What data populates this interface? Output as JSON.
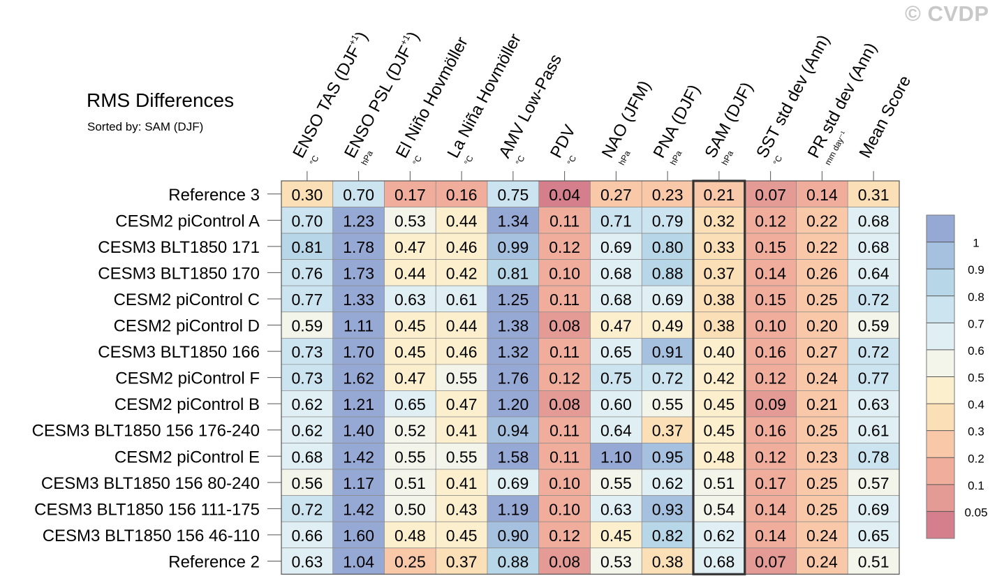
{
  "header": {
    "title": "RMS Differences",
    "subtitle": "Sorted by: SAM (DJF)",
    "watermark": "© CVDP"
  },
  "chart_data": {
    "type": "heatmap",
    "title": "RMS Differences",
    "subtitle": "Sorted by: SAM (DJF)",
    "highlighted_column": "SAM (DJF)",
    "columns": [
      {
        "label": "ENSO TAS (DJF",
        "sup": "+1",
        "close": ")",
        "unit": "°C"
      },
      {
        "label": "ENSO PSL (DJF",
        "sup": "+1",
        "close": ")",
        "unit": "hPa"
      },
      {
        "label": "El Niño Hovmöller",
        "sup": "",
        "close": "",
        "unit": "°C"
      },
      {
        "label": "La Niña Hovmöller",
        "sup": "",
        "close": "",
        "unit": "°C"
      },
      {
        "label": "AMV Low-Pass",
        "sup": "",
        "close": "",
        "unit": "°C"
      },
      {
        "label": "PDV",
        "sup": "",
        "close": "",
        "unit": "°C"
      },
      {
        "label": "NAO (JFM)",
        "sup": "",
        "close": "",
        "unit": "hPa"
      },
      {
        "label": "PNA (DJF)",
        "sup": "",
        "close": "",
        "unit": "hPa"
      },
      {
        "label": "SAM (DJF)",
        "sup": "",
        "close": "",
        "unit": "hPa"
      },
      {
        "label": "SST std dev (Ann)",
        "sup": "",
        "close": "",
        "unit": "°C"
      },
      {
        "label": "PR std dev (Ann)",
        "sup": "",
        "close": "",
        "unit": "mm day⁻¹"
      },
      {
        "label": "Mean Score",
        "sup": "",
        "close": "",
        "unit": ""
      }
    ],
    "rows": [
      "Reference 3",
      "CESM2 piControl A",
      "CESM3 BLT1850 171",
      "CESM3 BLT1850 170",
      "CESM2 piControl C",
      "CESM2 piControl D",
      "CESM3 BLT1850 166",
      "CESM2 piControl F",
      "CESM2 piControl B",
      "CESM3 BLT1850 156 176-240",
      "CESM2 piControl E",
      "CESM3 BLT1850 156 80-240",
      "CESM3 BLT1850 156 111-175",
      "CESM3 BLT1850 156 46-110",
      "Reference 2"
    ],
    "values": [
      [
        "0.30",
        "0.70",
        "0.17",
        "0.16",
        "0.75",
        "0.04",
        "0.27",
        "0.23",
        "0.21",
        "0.07",
        "0.14",
        "0.31"
      ],
      [
        "0.70",
        "1.23",
        "0.53",
        "0.44",
        "1.34",
        "0.11",
        "0.71",
        "0.79",
        "0.32",
        "0.12",
        "0.22",
        "0.68"
      ],
      [
        "0.81",
        "1.78",
        "0.47",
        "0.46",
        "0.99",
        "0.12",
        "0.69",
        "0.80",
        "0.33",
        "0.15",
        "0.22",
        "0.68"
      ],
      [
        "0.76",
        "1.73",
        "0.44",
        "0.42",
        "0.81",
        "0.10",
        "0.68",
        "0.88",
        "0.37",
        "0.14",
        "0.26",
        "0.64"
      ],
      [
        "0.77",
        "1.33",
        "0.63",
        "0.61",
        "1.25",
        "0.11",
        "0.68",
        "0.69",
        "0.38",
        "0.15",
        "0.25",
        "0.72"
      ],
      [
        "0.59",
        "1.11",
        "0.45",
        "0.44",
        "1.38",
        "0.08",
        "0.47",
        "0.49",
        "0.38",
        "0.10",
        "0.20",
        "0.59"
      ],
      [
        "0.73",
        "1.70",
        "0.45",
        "0.46",
        "1.32",
        "0.11",
        "0.65",
        "0.91",
        "0.40",
        "0.16",
        "0.27",
        "0.72"
      ],
      [
        "0.73",
        "1.62",
        "0.47",
        "0.55",
        "1.76",
        "0.12",
        "0.75",
        "0.72",
        "0.42",
        "0.12",
        "0.24",
        "0.77"
      ],
      [
        "0.62",
        "1.21",
        "0.65",
        "0.47",
        "1.20",
        "0.08",
        "0.60",
        "0.55",
        "0.45",
        "0.09",
        "0.21",
        "0.63"
      ],
      [
        "0.62",
        "1.40",
        "0.52",
        "0.41",
        "0.94",
        "0.11",
        "0.64",
        "0.37",
        "0.45",
        "0.16",
        "0.25",
        "0.61"
      ],
      [
        "0.68",
        "1.42",
        "0.55",
        "0.55",
        "1.58",
        "0.11",
        "1.10",
        "0.95",
        "0.48",
        "0.12",
        "0.23",
        "0.78"
      ],
      [
        "0.56",
        "1.17",
        "0.51",
        "0.41",
        "0.69",
        "0.10",
        "0.55",
        "0.62",
        "0.51",
        "0.17",
        "0.25",
        "0.57"
      ],
      [
        "0.72",
        "1.42",
        "0.50",
        "0.43",
        "1.19",
        "0.10",
        "0.63",
        "0.93",
        "0.54",
        "0.14",
        "0.25",
        "0.69"
      ],
      [
        "0.66",
        "1.60",
        "0.48",
        "0.45",
        "0.90",
        "0.12",
        "0.45",
        "0.82",
        "0.62",
        "0.14",
        "0.24",
        "0.65"
      ],
      [
        "0.63",
        "1.04",
        "0.25",
        "0.37",
        "0.88",
        "0.08",
        "0.53",
        "0.38",
        "0.68",
        "0.07",
        "0.24",
        "0.51"
      ]
    ],
    "colorbar": {
      "levels": [
        0.05,
        0.1,
        0.2,
        0.3,
        0.4,
        0.5,
        0.6,
        0.7,
        0.8,
        0.9,
        1
      ],
      "tick_labels": [
        "0.05",
        "0.1",
        "0.2",
        "0.3",
        "0.4",
        "0.5",
        "0.6",
        "0.7",
        "0.8",
        "0.9",
        "1"
      ],
      "colors": [
        "#d67f8c",
        "#e49a95",
        "#f0ad9c",
        "#f8c8a8",
        "#fbdfb6",
        "#fcefcd",
        "#f3f4ea",
        "#e0eff4",
        "#cce4ef",
        "#b7d6e7",
        "#a5c1df",
        "#96a8d4"
      ]
    }
  }
}
